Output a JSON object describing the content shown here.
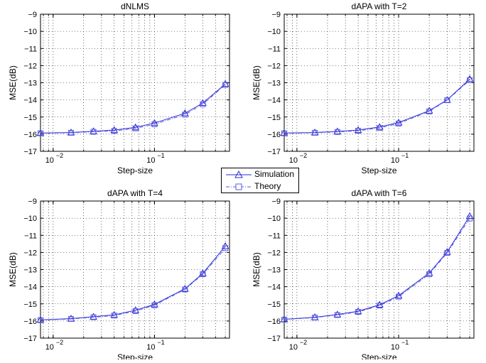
{
  "chart_data": [
    {
      "type": "line",
      "title": "dNLMS",
      "xlabel": "Step-size",
      "ylabel": "MSE(dB)",
      "xscale": "log",
      "xlim": [
        0.0075,
        0.55
      ],
      "ylim": [
        -17,
        -9
      ],
      "grid": true,
      "x": [
        0.0075,
        0.015,
        0.025,
        0.04,
        0.065,
        0.1,
        0.2,
        0.3,
        0.5
      ],
      "series": [
        {
          "name": "Simulation",
          "marker": "triangle",
          "color": "#2b2bd9",
          "values": [
            -15.93,
            -15.9,
            -15.83,
            -15.76,
            -15.6,
            -15.35,
            -14.78,
            -14.18,
            -13.07
          ]
        },
        {
          "name": "Theory",
          "marker": "square",
          "color": "#5a5ae0",
          "values": [
            -15.95,
            -15.92,
            -15.86,
            -15.81,
            -15.66,
            -15.42,
            -14.86,
            -14.25,
            -13.12
          ]
        }
      ]
    },
    {
      "type": "line",
      "title": "dAPA with T=2",
      "xlabel": "Step-size",
      "ylabel": "MSE(dB)",
      "xscale": "log",
      "xlim": [
        0.0075,
        0.55
      ],
      "ylim": [
        -17,
        -9
      ],
      "grid": true,
      "x": [
        0.0075,
        0.015,
        0.025,
        0.04,
        0.065,
        0.1,
        0.2,
        0.3,
        0.5
      ],
      "series": [
        {
          "name": "Simulation",
          "marker": "triangle",
          "color": "#2b2bd9",
          "values": [
            -15.93,
            -15.9,
            -15.84,
            -15.76,
            -15.58,
            -15.32,
            -14.63,
            -14.0,
            -12.78
          ]
        },
        {
          "name": "Theory",
          "marker": "square",
          "color": "#5a5ae0",
          "values": [
            -15.95,
            -15.92,
            -15.87,
            -15.8,
            -15.64,
            -15.38,
            -14.67,
            -14.02,
            -12.85
          ]
        }
      ]
    },
    {
      "type": "line",
      "title": "dAPA with T=4",
      "xlabel": "Step-size",
      "ylabel": "MSE(dB)",
      "xscale": "log",
      "xlim": [
        0.0075,
        0.55
      ],
      "ylim": [
        -17,
        -9
      ],
      "grid": true,
      "x": [
        0.0075,
        0.015,
        0.025,
        0.04,
        0.065,
        0.1,
        0.2,
        0.3,
        0.5
      ],
      "series": [
        {
          "name": "Simulation",
          "marker": "triangle",
          "color": "#2b2bd9",
          "values": [
            -15.93,
            -15.86,
            -15.75,
            -15.64,
            -15.37,
            -15.03,
            -14.12,
            -13.22,
            -11.63
          ]
        },
        {
          "name": "Theory",
          "marker": "square",
          "color": "#5a5ae0",
          "values": [
            -15.95,
            -15.88,
            -15.78,
            -15.68,
            -15.42,
            -15.08,
            -14.16,
            -13.27,
            -11.75
          ]
        }
      ]
    },
    {
      "type": "line",
      "title": "dAPA with T=6",
      "xlabel": "Step-size",
      "ylabel": "MSE(dB)",
      "xscale": "log",
      "xlim": [
        0.0075,
        0.55
      ],
      "ylim": [
        -17,
        -9
      ],
      "grid": true,
      "x": [
        0.0075,
        0.015,
        0.025,
        0.04,
        0.065,
        0.1,
        0.2,
        0.3,
        0.5
      ],
      "series": [
        {
          "name": "Simulation",
          "marker": "triangle",
          "color": "#2b2bd9",
          "values": [
            -15.9,
            -15.78,
            -15.62,
            -15.43,
            -15.05,
            -14.52,
            -13.2,
            -11.97,
            -9.88
          ]
        },
        {
          "name": "Theory",
          "marker": "square",
          "color": "#5a5ae0",
          "values": [
            -15.92,
            -15.8,
            -15.65,
            -15.47,
            -15.1,
            -14.58,
            -13.27,
            -12.03,
            -10.02
          ]
        }
      ]
    }
  ],
  "axes": {
    "yticks": [
      -17,
      -16,
      -15,
      -14,
      -13,
      -12,
      -11,
      -10,
      -9
    ],
    "xtick_major": [
      {
        "value": 0.01,
        "base": "10",
        "exp": "−2"
      },
      {
        "value": 0.1,
        "base": "10",
        "exp": "−1"
      }
    ],
    "xtick_minor": [
      0.008,
      0.009,
      0.02,
      0.03,
      0.04,
      0.05,
      0.06,
      0.07,
      0.08,
      0.09,
      0.2,
      0.3,
      0.4,
      0.5
    ]
  },
  "legend": {
    "entries": [
      {
        "label": "Simulation",
        "marker": "triangle",
        "line": "solid"
      },
      {
        "label": "Theory",
        "marker": "square",
        "line": "dashdot"
      }
    ]
  }
}
